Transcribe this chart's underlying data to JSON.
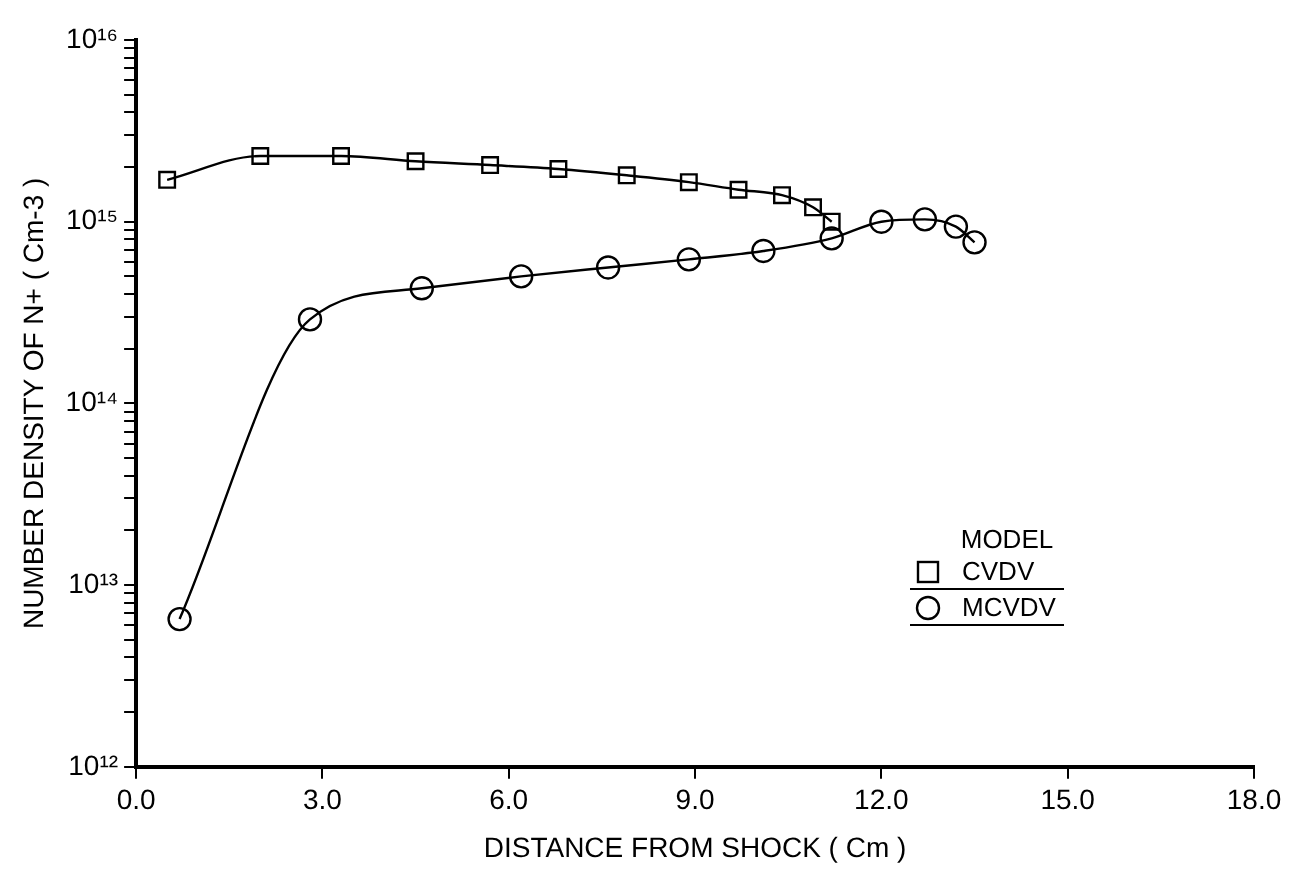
{
  "chart_data": {
    "type": "line",
    "xlabel": "DISTANCE FROM SHOCK ( Cm )",
    "ylabel": "NUMBER DENSITY OF N+ ( Cm-3 )",
    "legend_title": "MODEL",
    "legend": "right",
    "log": "y",
    "grid": false,
    "line_style": "solid",
    "xlim": [
      0,
      18
    ],
    "xticks": [
      {
        "value": 0,
        "label": "0.0"
      },
      {
        "value": 3,
        "label": "3.0"
      },
      {
        "value": 6,
        "label": "6.0"
      },
      {
        "value": 9,
        "label": "9.0"
      },
      {
        "value": 12,
        "label": "12.0"
      },
      {
        "value": 15,
        "label": "15.0"
      },
      {
        "value": 18,
        "label": "18.0"
      }
    ],
    "ylim": [
      1000000000000.0,
      1e+16
    ],
    "yticks": [
      {
        "value": 1000000000000.0,
        "label": "10¹²"
      },
      {
        "value": 2000000000000.0,
        "label": null
      },
      {
        "value": 3000000000000.0,
        "label": null
      },
      {
        "value": 4000000000000.0,
        "label": null
      },
      {
        "value": 5000000000000.0,
        "label": null
      },
      {
        "value": 6000000000000.0,
        "label": null
      },
      {
        "value": 7000000000000.0,
        "label": null
      },
      {
        "value": 8000000000000.0,
        "label": null
      },
      {
        "value": 9000000000000.0,
        "label": null
      },
      {
        "value": 10000000000000.0,
        "label": "10¹³"
      },
      {
        "value": 20000000000000.0,
        "label": null
      },
      {
        "value": 30000000000000.0,
        "label": null
      },
      {
        "value": 40000000000000.0,
        "label": null
      },
      {
        "value": 50000000000000.0,
        "label": null
      },
      {
        "value": 60000000000000.0,
        "label": null
      },
      {
        "value": 70000000000000.0,
        "label": null
      },
      {
        "value": 80000000000000.0,
        "label": null
      },
      {
        "value": 90000000000000.0,
        "label": null
      },
      {
        "value": 100000000000000.0,
        "label": "10¹⁴"
      },
      {
        "value": 200000000000000.0,
        "label": null
      },
      {
        "value": 300000000000000.0,
        "label": null
      },
      {
        "value": 400000000000000.0,
        "label": null
      },
      {
        "value": 500000000000000.0,
        "label": null
      },
      {
        "value": 600000000000000.0,
        "label": null
      },
      {
        "value": 700000000000000.0,
        "label": null
      },
      {
        "value": 800000000000000.0,
        "label": null
      },
      {
        "value": 900000000000000.0,
        "label": null
      },
      {
        "value": 1000000000000000.0,
        "label": "10¹⁵"
      },
      {
        "value": 2000000000000000.0,
        "label": null
      },
      {
        "value": 3000000000000000.0,
        "label": null
      },
      {
        "value": 4000000000000000.0,
        "label": null
      },
      {
        "value": 5000000000000000.0,
        "label": null
      },
      {
        "value": 6000000000000000.0,
        "label": null
      },
      {
        "value": 7000000000000000.0,
        "label": null
      },
      {
        "value": 8000000000000000.0,
        "label": null
      },
      {
        "value": 9000000000000000.0,
        "label": null
      },
      {
        "value": 1e+16,
        "label": "10¹⁶"
      }
    ],
    "series": [
      {
        "name": "CVDV",
        "color": "#000000",
        "marker": "square",
        "x": [
          0.5,
          2.0,
          3.3,
          4.5,
          5.7,
          6.8,
          7.9,
          8.9,
          9.7,
          10.4,
          10.9,
          11.2
        ],
        "values": [
          1700000000000000.0,
          2300000000000000.0,
          2300000000000000.0,
          2150000000000000.0,
          2050000000000000.0,
          1950000000000000.0,
          1800000000000000.0,
          1650000000000000.0,
          1500000000000000.0,
          1400000000000000.0,
          1200000000000000.0,
          1000000000000000.0
        ]
      },
      {
        "name": "MCVDV",
        "color": "#000000",
        "marker": "circle",
        "x": [
          0.7,
          2.8,
          4.6,
          6.2,
          7.6,
          8.9,
          10.1,
          11.2,
          12.0,
          12.7,
          13.2,
          13.5
        ],
        "values": [
          6500000000000.0,
          290000000000000.0,
          430000000000000.0,
          500000000000000.0,
          560000000000000.0,
          620000000000000.0,
          690000000000000.0,
          810000000000000.0,
          1000000000000000.0,
          1030000000000000.0,
          940000000000000.0,
          770000000000000.0
        ]
      }
    ]
  }
}
